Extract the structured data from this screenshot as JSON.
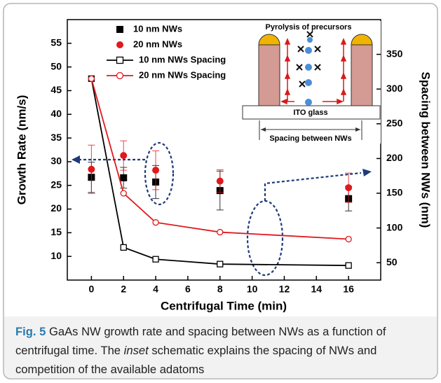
{
  "chart_data": {
    "type": "line",
    "x": [
      0,
      2,
      4,
      8,
      16
    ],
    "xlabel": "Centrifugal Time (min)",
    "ylabel": "Growth Rate (nm/s)",
    "y2label": "Spacing between NWs (nm)",
    "xlim": [
      -1.5,
      18
    ],
    "xticks": [
      0,
      2,
      4,
      6,
      8,
      10,
      12,
      14,
      16
    ],
    "ylim": [
      5,
      60
    ],
    "yticks": [
      10,
      15,
      20,
      25,
      30,
      35,
      40,
      45,
      50,
      55
    ],
    "y2lim": [
      25,
      400
    ],
    "y2ticks": [
      50,
      100,
      150,
      200,
      250,
      300,
      350
    ],
    "legend": "upper left",
    "series": [
      {
        "name": "10 nm NWs",
        "color": "#000000",
        "style": "scatter",
        "marker": "square",
        "values": [
          26.7,
          26.6,
          25.7,
          23.9,
          22.2
        ],
        "errors": [
          3.2,
          2.2,
          3.5,
          4.1,
          2.6
        ]
      },
      {
        "name": "20 nm NWs",
        "color": "#e0191e",
        "style": "scatter",
        "marker": "circle",
        "values": [
          28.4,
          31.3,
          28.2,
          25.9,
          24.5
        ],
        "errors": [
          5.1,
          3.1,
          4.1,
          2.4,
          3.1
        ]
      },
      {
        "name": "10 nm NWs Spacing",
        "color": "#000000",
        "style": "line",
        "marker": "square",
        "axis": "y2",
        "values": [
          315,
          72,
          55,
          48,
          46
        ]
      },
      {
        "name": "20 nm NWs Spacing",
        "color": "#e0191e",
        "style": "line",
        "marker": "circle",
        "axis": "y2",
        "values": [
          315,
          150,
          108,
          94,
          84
        ]
      }
    ],
    "inset": {
      "title": "Pyrolysis of  precursors",
      "substrate": "ITO glass",
      "spacing": "Spacing between NWs"
    }
  },
  "caption": {
    "label": "Fig. 5",
    "text_before": " GaAs NW growth rate and spacing between NWs as a function of centrifugal time. The ",
    "emphasis": "inset",
    "text_after": " schematic explains the spacing of NWs and competition of the available adatoms"
  }
}
